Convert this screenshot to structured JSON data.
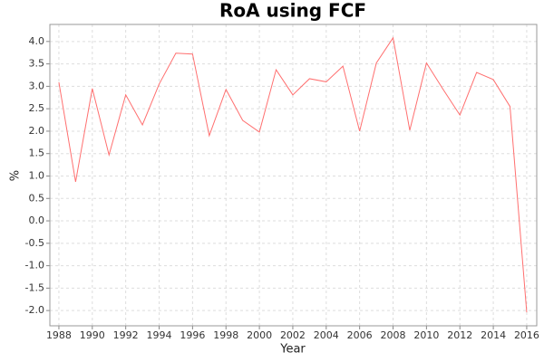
{
  "chart_data": {
    "type": "line",
    "title": "RoA using FCF",
    "xlabel": "Year",
    "ylabel": "%",
    "x": [
      1988,
      1989,
      1990,
      1991,
      1992,
      1993,
      1994,
      1995,
      1996,
      1997,
      1998,
      1999,
      2000,
      2001,
      2002,
      2003,
      2004,
      2005,
      2006,
      2007,
      2008,
      2009,
      2010,
      2011,
      2012,
      2013,
      2014,
      2015,
      2016
    ],
    "series": [
      {
        "name": "RoA using FCF",
        "color": "#ff6f6f",
        "values": [
          3.09,
          0.87,
          2.95,
          1.47,
          2.81,
          2.14,
          3.05,
          3.74,
          3.72,
          1.9,
          2.93,
          2.24,
          1.98,
          3.37,
          2.81,
          3.17,
          3.1,
          3.45,
          2.0,
          3.52,
          4.08,
          2.02,
          3.52,
          2.93,
          2.36,
          3.31,
          3.15,
          2.55,
          -2.04
        ]
      }
    ],
    "xlim": [
      1987.46,
      2016.6
    ],
    "ylim": [
      -2.34,
      4.38
    ],
    "xticks": [
      1988,
      1990,
      1992,
      1994,
      1996,
      1998,
      2000,
      2002,
      2004,
      2006,
      2008,
      2010,
      2012,
      2014,
      2016
    ],
    "yticks": [
      {
        "value": -2,
        "label": "-2.0"
      },
      -1.5,
      {
        "value": -1,
        "label": "-1.0"
      },
      -0.5,
      {
        "value": 0,
        "label": "0.0"
      },
      0.5,
      {
        "value": 1,
        "label": "1.0"
      },
      1.5,
      {
        "value": 2,
        "label": "2.0"
      },
      2.5,
      {
        "value": 3,
        "label": "3.0"
      },
      3.5,
      {
        "value": 4,
        "label": "4.0"
      }
    ],
    "grid": true
  }
}
